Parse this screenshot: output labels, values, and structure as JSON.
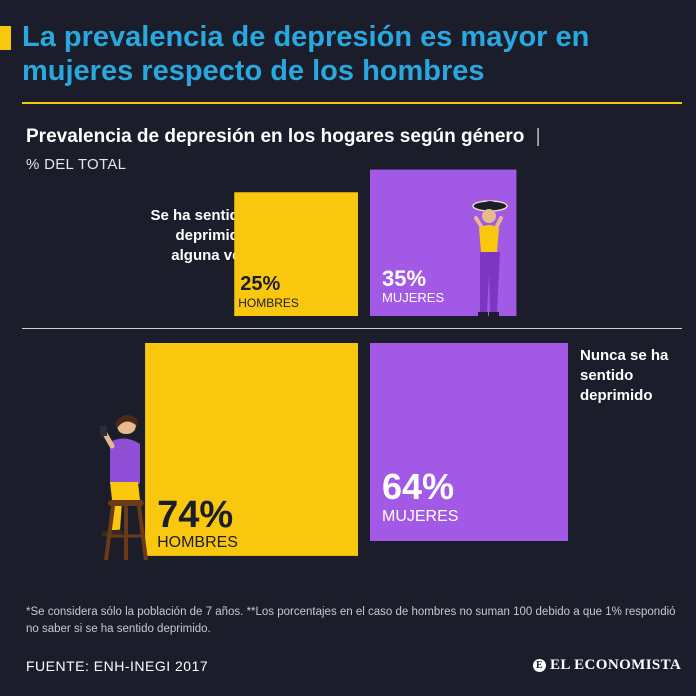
{
  "headline": "La prevalencia de depresión es mayor en mujeres respecto de los hombres",
  "colors": {
    "men": "#f9c80e",
    "women": "#a259e6",
    "headline": "#29a8e0",
    "background": "#1b1d2a"
  },
  "chart_data": {
    "type": "bar",
    "title": "Prevalencia de depresión en los hogares según género",
    "title_separator": "|",
    "unit": "% DEL TOTAL",
    "categories": [
      "Se ha sentido deprimido alguna vez",
      "Nunca se ha sentido deprimido"
    ],
    "series": [
      {
        "name": "HOMBRES",
        "values": [
          25,
          74
        ],
        "labels": [
          "25%",
          "74%"
        ]
      },
      {
        "name": "MUJERES",
        "values": [
          35,
          64
        ],
        "labels": [
          "35%",
          "64%"
        ]
      }
    ],
    "encoding": "square area proportional to percentage"
  },
  "footnote": "*Se considera sólo la población de 7 años. **Los porcentajes en el caso de hombres no suman 100 debido a que 1% respondió no saber si se ha sentido deprimido.",
  "source": "FUENTE: ENH-INEGI 2017",
  "brand": {
    "logo_letter": "E",
    "name": "EL ECONOMISTA"
  }
}
